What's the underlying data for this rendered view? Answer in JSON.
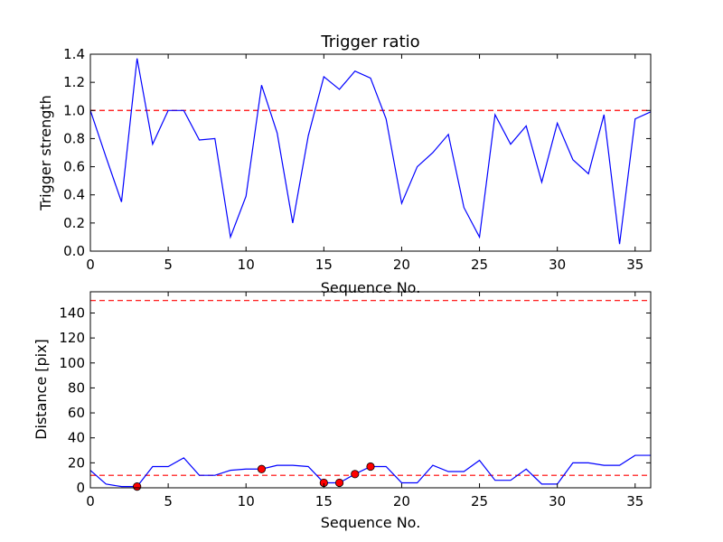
{
  "chart_data": [
    {
      "type": "line",
      "title": "Trigger ratio",
      "xlabel": "Sequence No.",
      "ylabel": "Trigger strength",
      "xlim": [
        0,
        36
      ],
      "ylim": [
        0,
        1.4
      ],
      "xticks": [
        0,
        5,
        10,
        15,
        20,
        25,
        30,
        35
      ],
      "yticks": [
        0.0,
        0.2,
        0.4,
        0.6,
        0.8,
        1.0,
        1.2,
        1.4
      ],
      "ytick_labels": [
        "0.0",
        "0.2",
        "0.4",
        "0.6",
        "0.8",
        "1.0",
        "1.2",
        "1.4"
      ],
      "grid": false,
      "line_color": "#0000ff",
      "threshold_color": "#ff0000",
      "thresholds": [
        1.0
      ],
      "x": [
        0,
        1,
        2,
        3,
        4,
        5,
        6,
        7,
        8,
        9,
        10,
        11,
        12,
        13,
        14,
        15,
        16,
        17,
        18,
        19,
        20,
        21,
        22,
        23,
        24,
        25,
        26,
        27,
        28,
        29,
        30,
        31,
        32,
        33,
        34,
        35,
        36
      ],
      "series": [
        {
          "values": [
            1.0,
            0.67,
            0.35,
            1.37,
            0.76,
            1.0,
            1.0,
            0.79,
            0.8,
            0.1,
            0.39,
            1.18,
            0.84,
            0.2,
            0.82,
            1.24,
            1.15,
            1.28,
            1.23,
            0.94,
            0.34,
            0.6,
            0.7,
            0.83,
            0.31,
            0.1,
            0.97,
            0.76,
            0.89,
            0.49,
            0.91,
            0.65,
            0.55,
            0.97,
            0.05,
            0.94,
            0.99
          ]
        }
      ]
    },
    {
      "type": "line",
      "title": "",
      "xlabel": "Sequence No.",
      "ylabel": "Distance [pix]",
      "xlim": [
        0,
        36
      ],
      "ylim": [
        0,
        157
      ],
      "xticks": [
        0,
        5,
        10,
        15,
        20,
        25,
        30,
        35
      ],
      "yticks": [
        0,
        20,
        40,
        60,
        80,
        100,
        120,
        140
      ],
      "ytick_labels": [
        "0",
        "20",
        "40",
        "60",
        "80",
        "100",
        "120",
        "140"
      ],
      "grid": false,
      "line_color": "#0000ff",
      "threshold_color": "#ff0000",
      "marker_color": "#ff0000",
      "thresholds": [
        10,
        150
      ],
      "x": [
        0,
        1,
        2,
        3,
        4,
        5,
        6,
        7,
        8,
        9,
        10,
        11,
        12,
        13,
        14,
        15,
        16,
        17,
        18,
        19,
        20,
        21,
        22,
        23,
        24,
        25,
        26,
        27,
        28,
        29,
        30,
        31,
        32,
        33,
        34,
        35,
        36
      ],
      "series": [
        {
          "values": [
            14,
            3,
            1,
            1,
            17,
            17,
            24,
            10,
            10,
            14,
            15,
            15,
            18,
            18,
            17,
            4,
            4,
            11,
            17,
            17,
            4,
            4,
            18,
            13,
            13,
            22,
            6,
            6,
            15,
            3,
            3,
            20,
            20,
            18,
            18,
            26,
            26
          ]
        }
      ],
      "markers": {
        "x": [
          3,
          11,
          15,
          16,
          17,
          18
        ],
        "y": [
          1,
          15,
          4,
          4,
          11,
          17
        ]
      }
    }
  ]
}
